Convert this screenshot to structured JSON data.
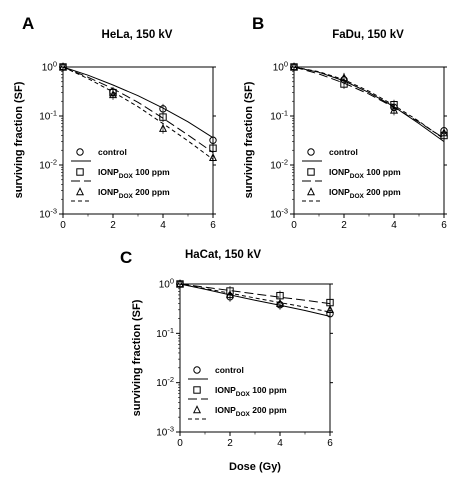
{
  "figure": {
    "x_axis_label": "Dose (Gy)"
  },
  "chart_data": [
    {
      "type": "scatter",
      "panel_letter": "A",
      "title": "HeLa, 150 kV",
      "ylabel": "surviving fraction (SF)",
      "xlabel": "",
      "y_scale": "log",
      "ylim": [
        0.001,
        1
      ],
      "xlim": [
        0,
        6
      ],
      "x_ticks": [
        "0",
        "2",
        "4",
        "6"
      ],
      "y_ticks": [
        "10^0",
        "10^-1",
        "10^-2",
        "10^-3"
      ],
      "legend_position": "lower-left",
      "series": [
        {
          "name": "control",
          "marker": "circle",
          "line": "solid",
          "x": [
            0,
            2,
            4,
            6
          ],
          "y": [
            1.0,
            0.31,
            0.14,
            0.032
          ],
          "fit_x": [
            0,
            1,
            2,
            3,
            4,
            5,
            6
          ],
          "fit_y": [
            1.0,
            0.68,
            0.43,
            0.26,
            0.145,
            0.076,
            0.036
          ]
        },
        {
          "name": "IONP_DOX 100 ppm",
          "marker": "square",
          "line": "long-dash",
          "x": [
            0,
            2,
            4,
            6
          ],
          "y": [
            1.0,
            0.3,
            0.095,
            0.022
          ],
          "fit_x": [
            0,
            1,
            2,
            3,
            4,
            5,
            6
          ],
          "fit_y": [
            1.0,
            0.62,
            0.36,
            0.19,
            0.09,
            0.041,
            0.018
          ]
        },
        {
          "name": "IONP_DOX 200 ppm",
          "marker": "triangle",
          "line": "short-dash",
          "x": [
            0,
            2,
            4,
            6
          ],
          "y": [
            1.0,
            0.27,
            0.055,
            0.014
          ],
          "fit_x": [
            0,
            1,
            2,
            3,
            4,
            5,
            6
          ],
          "fit_y": [
            1.0,
            0.58,
            0.31,
            0.155,
            0.07,
            0.031,
            0.013
          ]
        }
      ]
    },
    {
      "type": "scatter",
      "panel_letter": "B",
      "title": "FaDu, 150 kV",
      "ylabel": "surviving fraction (SF)",
      "xlabel": "",
      "y_scale": "log",
      "ylim": [
        0.001,
        1
      ],
      "xlim": [
        0,
        6
      ],
      "x_ticks": [
        "0",
        "2",
        "4",
        "6"
      ],
      "y_ticks": [
        "10^0",
        "10^-1",
        "10^-2",
        "10^-3"
      ],
      "legend_position": "lower-left",
      "series": [
        {
          "name": "control",
          "marker": "circle",
          "line": "solid",
          "x": [
            0,
            2,
            4,
            6
          ],
          "y": [
            1.0,
            0.55,
            0.15,
            0.05
          ],
          "fit_x": [
            0,
            1,
            2,
            3,
            4,
            5,
            6
          ],
          "fit_y": [
            1.0,
            0.78,
            0.52,
            0.3,
            0.155,
            0.07,
            0.03
          ]
        },
        {
          "name": "IONP_DOX 100 ppm",
          "marker": "square",
          "line": "long-dash",
          "x": [
            0,
            2,
            4,
            6
          ],
          "y": [
            1.0,
            0.45,
            0.17,
            0.04
          ],
          "fit_x": [
            0,
            1,
            2,
            3,
            4,
            5,
            6
          ],
          "fit_y": [
            1.0,
            0.72,
            0.47,
            0.28,
            0.15,
            0.075,
            0.035
          ]
        },
        {
          "name": "IONP_DOX 200 ppm",
          "marker": "triangle",
          "line": "short-dash",
          "x": [
            0,
            2,
            4,
            6
          ],
          "y": [
            1.0,
            0.6,
            0.13,
            0.045
          ],
          "fit_x": [
            0,
            1,
            2,
            3,
            4,
            5,
            6
          ],
          "fit_y": [
            1.0,
            0.8,
            0.55,
            0.32,
            0.165,
            0.078,
            0.034
          ]
        }
      ]
    },
    {
      "type": "scatter",
      "panel_letter": "C",
      "title": "HaCat, 150 kV",
      "ylabel": "surviving fraction (SF)",
      "xlabel": "Dose (Gy)",
      "y_scale": "log",
      "ylim": [
        0.001,
        1
      ],
      "xlim": [
        0,
        6
      ],
      "x_ticks": [
        "0",
        "2",
        "4",
        "6"
      ],
      "y_ticks": [
        "10^0",
        "10^-1",
        "10^-2",
        "10^-3"
      ],
      "legend_position": "lower-left",
      "series": [
        {
          "name": "control",
          "marker": "circle",
          "line": "solid",
          "x": [
            0,
            2,
            4,
            6
          ],
          "y": [
            1.0,
            0.55,
            0.38,
            0.25
          ],
          "fit_x": [
            0,
            1,
            2,
            3,
            4,
            5,
            6
          ],
          "fit_y": [
            1.0,
            0.78,
            0.6,
            0.47,
            0.37,
            0.29,
            0.22
          ]
        },
        {
          "name": "IONP_DOX 100 ppm",
          "marker": "square",
          "line": "long-dash",
          "x": [
            0,
            2,
            4,
            6
          ],
          "y": [
            1.0,
            0.72,
            0.58,
            0.42
          ],
          "fit_x": [
            0,
            1,
            2,
            3,
            4,
            5,
            6
          ],
          "fit_y": [
            1.0,
            0.86,
            0.74,
            0.63,
            0.54,
            0.47,
            0.4
          ]
        },
        {
          "name": "IONP_DOX 200 ppm",
          "marker": "triangle",
          "line": "short-dash",
          "x": [
            0,
            2,
            4,
            6
          ],
          "y": [
            1.0,
            0.6,
            0.4,
            0.3
          ],
          "fit_x": [
            0,
            1,
            2,
            3,
            4,
            5,
            6
          ],
          "fit_y": [
            1.0,
            0.81,
            0.65,
            0.52,
            0.42,
            0.34,
            0.27
          ]
        }
      ]
    }
  ],
  "legend_text": {
    "control": "control",
    "ionp_prefix": "IONP",
    "ionp_subscript": "DOX",
    "ionp_100_suffix": " 100 ppm",
    "ionp_200_suffix": " 200 ppm"
  },
  "colors": {
    "line": "#000000",
    "axis": "#000000",
    "background": "#ffffff"
  }
}
